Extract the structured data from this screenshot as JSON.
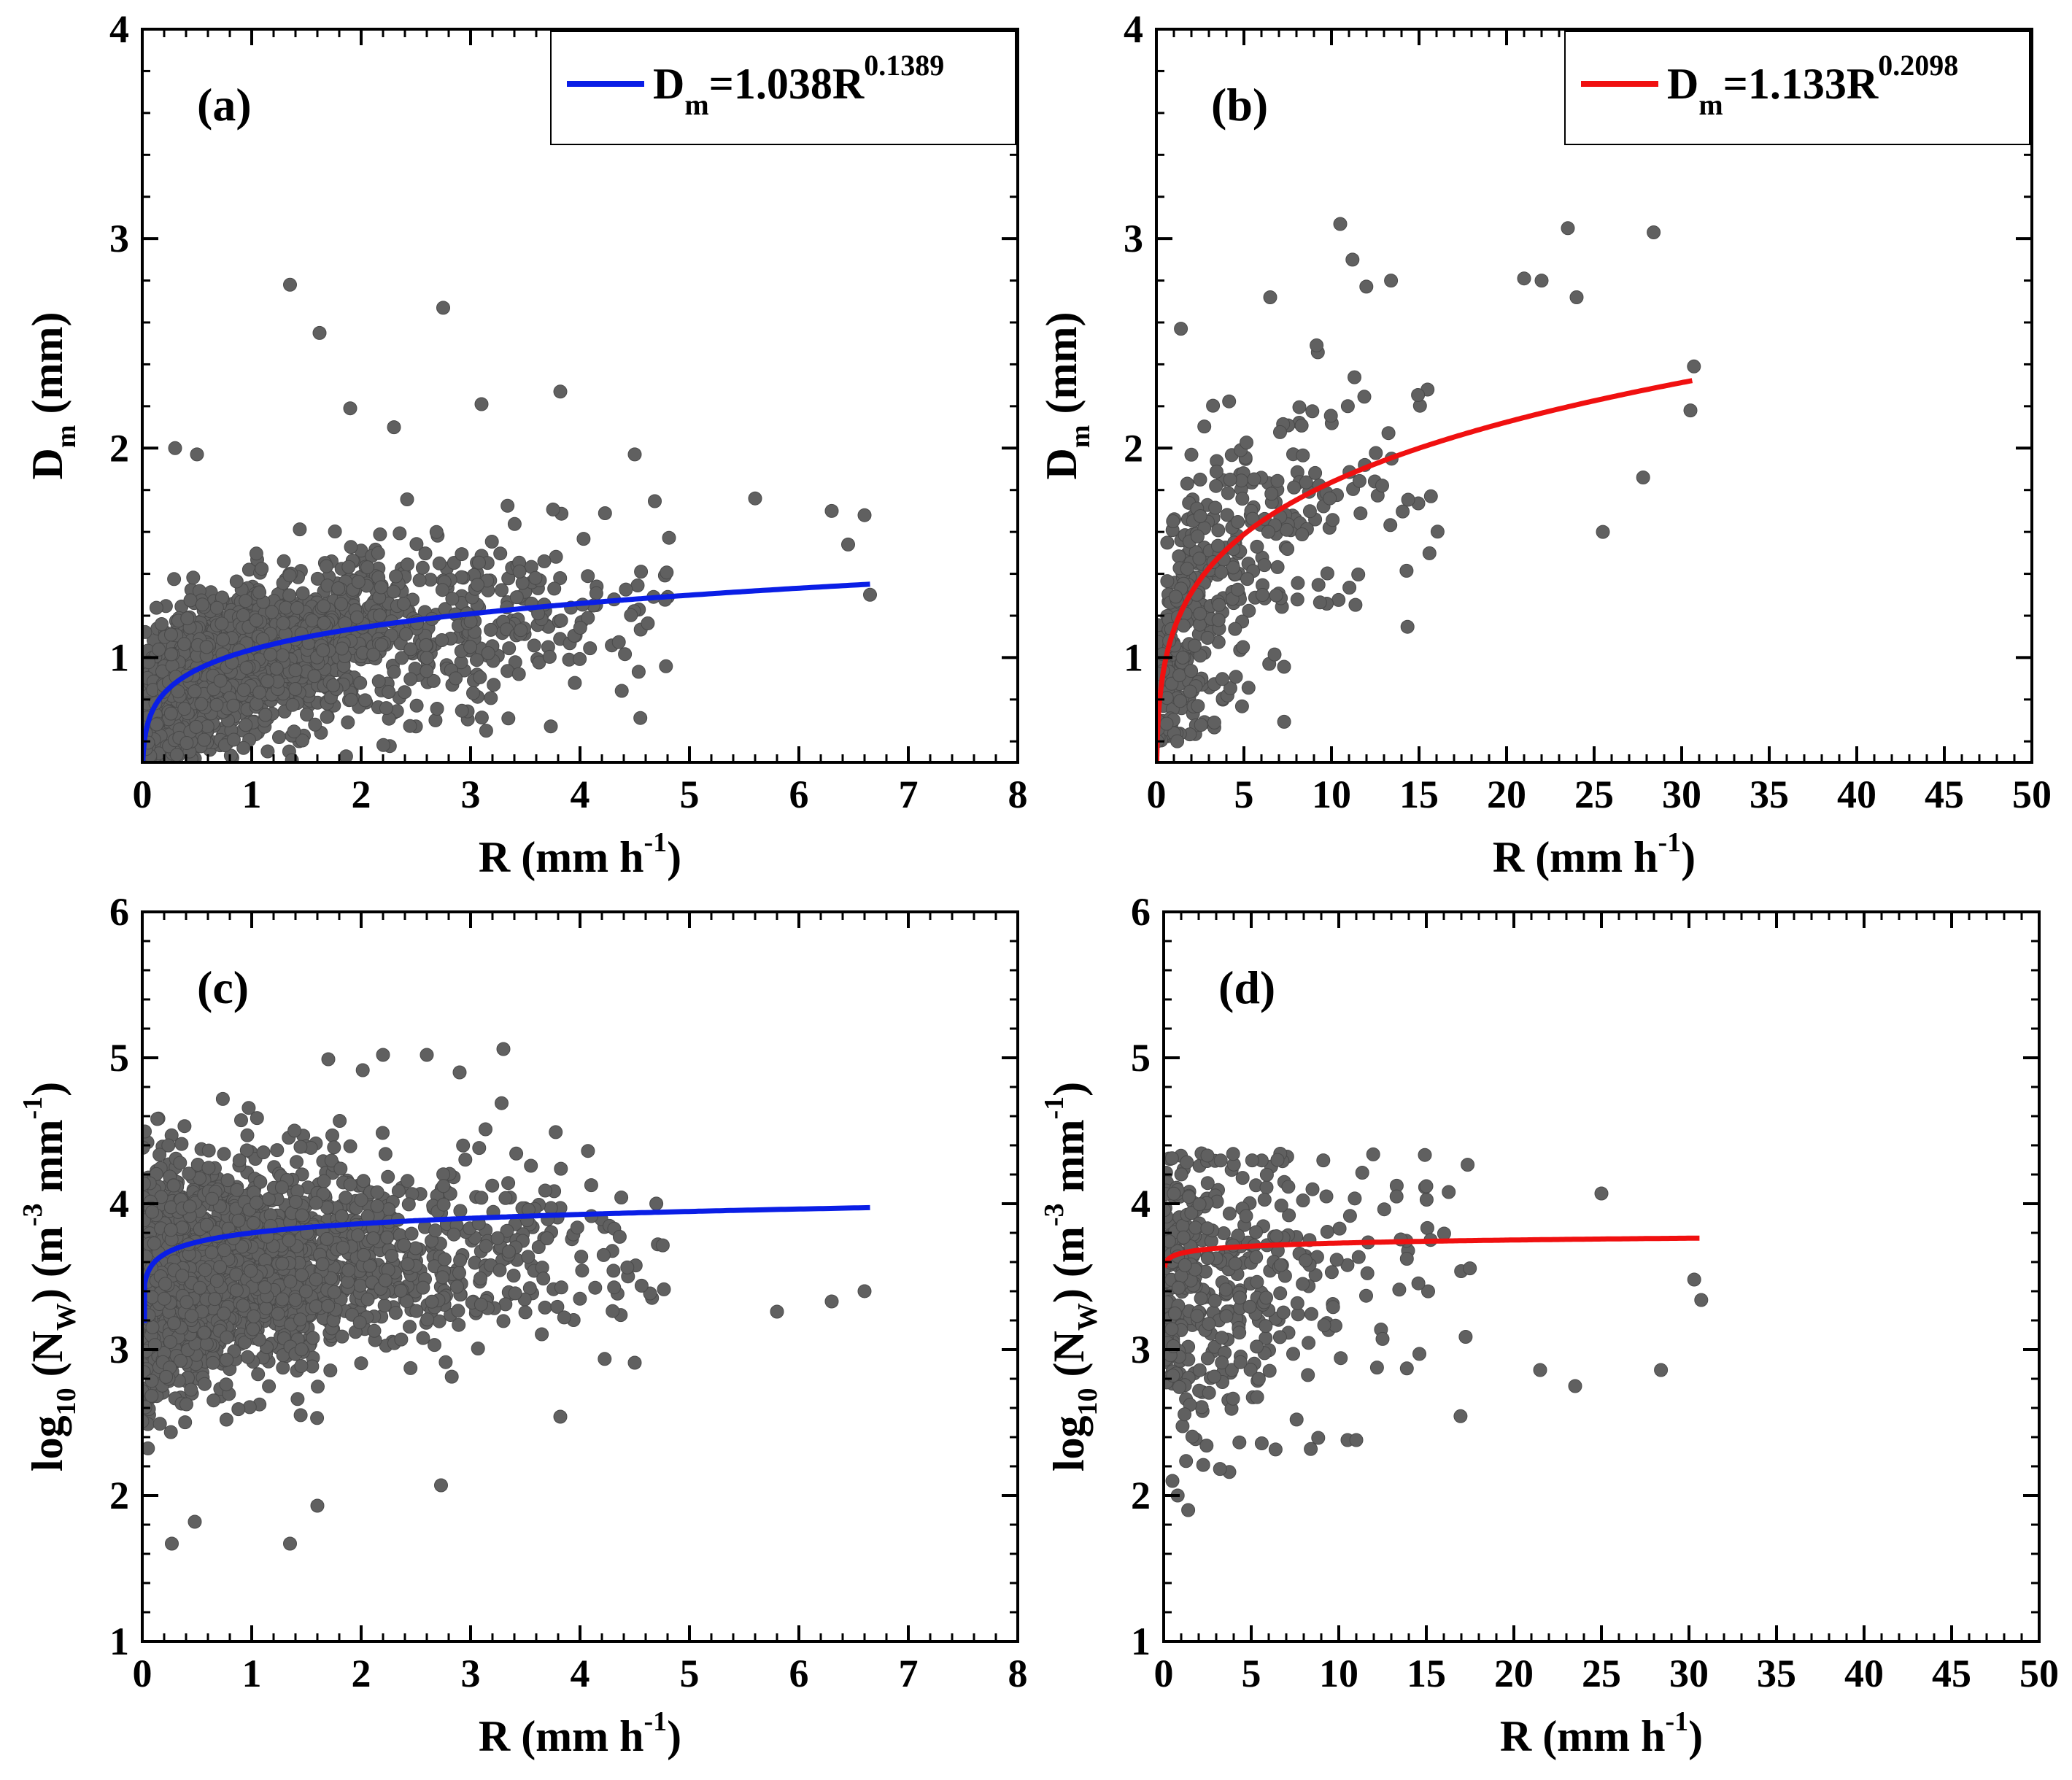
{
  "colors": {
    "scatter": "#606060",
    "scatter_edge": "#4a4a4a",
    "fit_a": "#0a1ee6",
    "fit_b": "#f01010",
    "fit_c": "#0a1ee6",
    "fit_d": "#f01010"
  },
  "chart_data": [
    {
      "id": "a",
      "type": "scatter",
      "panel_label": "(a)",
      "xlabel": {
        "main": "R (mm h",
        "sup": "-1",
        "close": ")"
      },
      "ylabel": {
        "main": "D",
        "sub": "m",
        "rest": " (mm)"
      },
      "xlim": [
        0,
        8
      ],
      "ylim": [
        0.5,
        4
      ],
      "xticks": [
        0,
        1,
        2,
        3,
        4,
        5,
        6,
        7,
        8
      ],
      "xtick_labels": [
        "0",
        "1",
        "2",
        "3",
        "4",
        "5",
        "6",
        "7",
        "8"
      ],
      "yticks": [
        1,
        2,
        3,
        4
      ],
      "ytick_labels": [
        "1",
        "2",
        "3",
        "4"
      ],
      "legend": {
        "position": "top-right",
        "lhs": "D",
        "lhs_sub": "m",
        "rhs": "=1.038R",
        "rhs_sup": "0.1389"
      },
      "fit": {
        "coef": 1.038,
        "exp": 0.1389,
        "x_range": [
          0.002,
          6.65
        ],
        "color_key": "fit_a"
      },
      "scatter": {
        "approx_count": 2000,
        "x_range": [
          0,
          6.7
        ],
        "center_relation": "1.0*R^0.14",
        "y_spread": [
          0.5,
          2.3
        ],
        "outliers": [
          [
            1.35,
            2.78
          ],
          [
            1.62,
            2.55
          ],
          [
            2.75,
            2.67
          ],
          [
            3.1,
            2.21
          ],
          [
            3.82,
            2.27
          ],
          [
            2.3,
            2.1
          ],
          [
            1.9,
            2.19
          ],
          [
            4.5,
            1.97
          ],
          [
            5.6,
            1.76
          ],
          [
            6.3,
            1.7
          ],
          [
            6.6,
            1.68
          ],
          [
            6.45,
            1.54
          ],
          [
            6.65,
            1.3
          ],
          [
            0.3,
            2.0
          ],
          [
            0.5,
            1.97
          ]
        ]
      }
    },
    {
      "id": "b",
      "type": "scatter",
      "panel_label": "(b)",
      "xlabel": {
        "main": "R (mm h",
        "sup": "-1",
        "close": ")"
      },
      "ylabel": {
        "main": "D",
        "sub": "m",
        "rest": " (mm)"
      },
      "xlim": [
        0,
        50
      ],
      "ylim": [
        0.5,
        4
      ],
      "xticks": [
        0,
        5,
        10,
        15,
        20,
        25,
        30,
        35,
        40,
        45,
        50
      ],
      "xtick_labels": [
        "0",
        "5",
        "10",
        "15",
        "20",
        "25",
        "30",
        "35",
        "40",
        "45",
        "50"
      ],
      "yticks": [
        1,
        2,
        3,
        4
      ],
      "ytick_labels": [
        "1",
        "2",
        "3",
        "4"
      ],
      "legend": {
        "position": "top-right",
        "lhs": "D",
        "lhs_sub": "m",
        "rhs": "=1.133R",
        "rhs_sup": "0.2098"
      },
      "fit": {
        "coef": 1.133,
        "exp": 0.2098,
        "x_range": [
          0.02,
          30.6
        ],
        "color_key": "fit_b"
      },
      "scatter": {
        "approx_count": 420,
        "x_range": [
          0,
          31
        ],
        "center_relation": "1.05*R^0.21",
        "y_spread": [
          0.6,
          3.1
        ],
        "outliers": [
          [
            10.5,
            3.07
          ],
          [
            23.5,
            3.05
          ],
          [
            28.4,
            3.03
          ],
          [
            11.2,
            2.9
          ],
          [
            13.4,
            2.8
          ],
          [
            21,
            2.81
          ],
          [
            22,
            2.8
          ],
          [
            24,
            2.72
          ],
          [
            6.5,
            2.72
          ],
          [
            1.4,
            2.57
          ],
          [
            30.7,
            2.39
          ],
          [
            30.5,
            2.18
          ],
          [
            27.8,
            1.86
          ],
          [
            25.5,
            1.6
          ]
        ]
      }
    },
    {
      "id": "c",
      "type": "scatter",
      "panel_label": "(c)",
      "xlabel": {
        "main": "R (mm h",
        "sup": "-1",
        "close": ")"
      },
      "ylabel": {
        "main": "log",
        "sub": "10",
        "mid": " (N",
        "sub2": "W",
        "rest": ") (m",
        "sup": "-3",
        "rest2": " mm",
        "sup2": "-1",
        "close": ")"
      },
      "xlim": [
        0,
        8
      ],
      "ylim": [
        1,
        6
      ],
      "xticks": [
        0,
        1,
        2,
        3,
        4,
        5,
        6,
        7,
        8
      ],
      "xtick_labels": [
        "0",
        "1",
        "2",
        "3",
        "4",
        "5",
        "6",
        "7",
        "8"
      ],
      "yticks": [
        1,
        2,
        3,
        4,
        5,
        6
      ],
      "ytick_labels": [
        "1",
        "2",
        "3",
        "4",
        "5",
        "6"
      ],
      "fit": {
        "type": "log10_power",
        "coef_a": 1.038,
        "exp_a": 0.1389,
        "x_range": [
          0.005,
          6.65
        ],
        "color_key": "fit_c"
      },
      "scatter": {
        "approx_count": 2000,
        "x_range": [
          0,
          6.7
        ],
        "center_relation": "fit-0.15",
        "y_spread": [
          1.65,
          5.05
        ],
        "outliers": [
          [
            0.27,
            1.67
          ],
          [
            1.35,
            1.67
          ],
          [
            1.6,
            1.93
          ],
          [
            2.73,
            2.07
          ],
          [
            0.48,
            1.82
          ],
          [
            3.3,
            5.06
          ],
          [
            2.2,
            5.02
          ],
          [
            2.6,
            5.02
          ],
          [
            1.7,
            4.99
          ],
          [
            2.9,
            4.9
          ],
          [
            3.82,
            2.54
          ],
          [
            4.5,
            2.91
          ],
          [
            6.3,
            3.33
          ],
          [
            6.6,
            3.4
          ],
          [
            5.8,
            3.26
          ]
        ]
      }
    },
    {
      "id": "d",
      "type": "scatter",
      "panel_label": "(d)",
      "xlabel": {
        "main": "R (mm h",
        "sup": "-1",
        "close": ")"
      },
      "ylabel": {
        "main": "log",
        "sub": "10",
        "mid": " (N",
        "sub2": "W",
        "rest": ") (m",
        "sup": "-3",
        "rest2": " mm",
        "sup2": "-1",
        "close": ")"
      },
      "xlim": [
        0,
        50
      ],
      "ylim": [
        1,
        6
      ],
      "xticks": [
        0,
        5,
        10,
        15,
        20,
        25,
        30,
        35,
        40,
        45,
        50
      ],
      "xtick_labels": [
        "0",
        "5",
        "10",
        "15",
        "20",
        "25",
        "30",
        "35",
        "40",
        "45",
        "50"
      ],
      "yticks": [
        1,
        2,
        3,
        4,
        5,
        6
      ],
      "ytick_labels": [
        "1",
        "2",
        "3",
        "4",
        "5",
        "6"
      ],
      "fit": {
        "type": "log10_power",
        "coef_a": 1.133,
        "exp_a": 0.2098,
        "x_range": [
          0.05,
          30.6
        ],
        "color_key": "fit_d"
      },
      "scatter": {
        "approx_count": 420,
        "x_range": [
          0,
          31
        ],
        "center_relation": "3.45",
        "y_spread": [
          1.9,
          4.35
        ],
        "outliers": [
          [
            1.4,
            1.9
          ],
          [
            0.8,
            2.0
          ],
          [
            0.5,
            2.1
          ],
          [
            10.5,
            2.38
          ],
          [
            11,
            2.38
          ],
          [
            23.5,
            2.75
          ],
          [
            28.4,
            2.86
          ],
          [
            21.5,
            2.86
          ],
          [
            30.3,
            3.48
          ],
          [
            30.7,
            3.34
          ],
          [
            25,
            4.07
          ],
          [
            15,
            4.12
          ],
          [
            6.5,
            4.3
          ],
          [
            2.5,
            4.33
          ]
        ]
      }
    }
  ]
}
